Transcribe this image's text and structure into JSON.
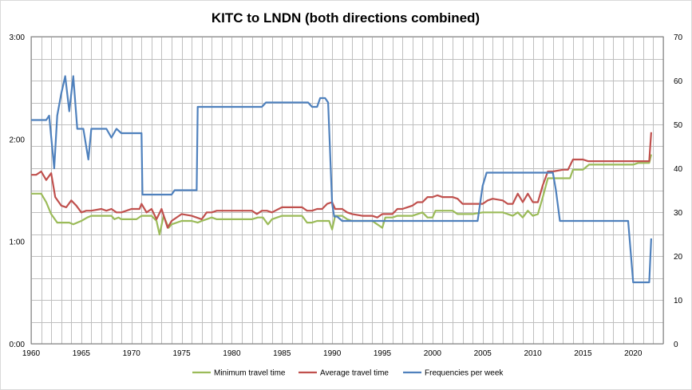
{
  "chart_data": {
    "type": "line",
    "title": "KITC to LNDN (both directions combined)",
    "x_ticks": [
      1960,
      1965,
      1970,
      1975,
      1980,
      1985,
      1990,
      1995,
      2000,
      2005,
      2010,
      2015,
      2020
    ],
    "xlim": [
      1960,
      2023
    ],
    "y_left": {
      "label": "",
      "unit": "minutes",
      "range": [
        0,
        180
      ],
      "ticks": [
        0,
        60,
        120,
        180
      ],
      "tick_labels": [
        "0:00",
        "1:00",
        "2:00",
        "3:00"
      ]
    },
    "y_right": {
      "label": "",
      "range": [
        0,
        70
      ],
      "ticks": [
        0,
        10,
        20,
        30,
        40,
        50,
        60,
        70
      ],
      "tick_labels": [
        "0",
        "10",
        "20",
        "30",
        "40",
        "50",
        "60",
        "70"
      ]
    },
    "series": [
      {
        "name": "Minimum travel time",
        "axis": "left",
        "color": "#9bbb59",
        "points": [
          [
            1960,
            88
          ],
          [
            1961,
            88
          ],
          [
            1961.5,
            83
          ],
          [
            1962,
            76
          ],
          [
            1962.6,
            71
          ],
          [
            1963,
            71
          ],
          [
            1963.8,
            71
          ],
          [
            1964.2,
            70
          ],
          [
            1964.6,
            71
          ],
          [
            1965,
            72
          ],
          [
            1965.6,
            74
          ],
          [
            1966,
            75
          ],
          [
            1967,
            75
          ],
          [
            1968,
            75
          ],
          [
            1968.3,
            73
          ],
          [
            1968.7,
            74
          ],
          [
            1969,
            73
          ],
          [
            1970,
            73
          ],
          [
            1970.5,
            73
          ],
          [
            1971,
            75
          ],
          [
            1971.6,
            75
          ],
          [
            1972,
            75
          ],
          [
            1972.5,
            72
          ],
          [
            1972.8,
            64
          ],
          [
            1973.2,
            75
          ],
          [
            1973.7,
            68
          ],
          [
            1974,
            70
          ],
          [
            1975,
            72
          ],
          [
            1976,
            72
          ],
          [
            1976.6,
            71
          ],
          [
            1977,
            72
          ],
          [
            1978,
            74
          ],
          [
            1978.5,
            73
          ],
          [
            1979,
            73
          ],
          [
            1980,
            73
          ],
          [
            1981,
            73
          ],
          [
            1982,
            73
          ],
          [
            1982.6,
            74
          ],
          [
            1983.1,
            74
          ],
          [
            1983.6,
            70
          ],
          [
            1984,
            73
          ],
          [
            1985,
            75
          ],
          [
            1986,
            75
          ],
          [
            1987,
            75
          ],
          [
            1987.5,
            71
          ],
          [
            1988,
            71
          ],
          [
            1988.5,
            72
          ],
          [
            1989,
            72
          ],
          [
            1989.7,
            72
          ],
          [
            1990,
            67
          ],
          [
            1990.3,
            75
          ],
          [
            1991,
            75
          ],
          [
            1991.5,
            73
          ],
          [
            1992,
            72
          ],
          [
            1993,
            72
          ],
          [
            1994,
            72
          ],
          [
            1994.5,
            70
          ],
          [
            1995,
            68
          ],
          [
            1995.3,
            74
          ],
          [
            1996,
            74
          ],
          [
            1996.5,
            75
          ],
          [
            1997,
            75
          ],
          [
            1998,
            75
          ],
          [
            1998.5,
            76
          ],
          [
            1999,
            77
          ],
          [
            1999.5,
            74
          ],
          [
            2000,
            74
          ],
          [
            2000.3,
            78
          ],
          [
            2001,
            78
          ],
          [
            2002,
            78
          ],
          [
            2002.5,
            76
          ],
          [
            2003,
            76
          ],
          [
            2004,
            76
          ],
          [
            2005,
            77
          ],
          [
            2006,
            77
          ],
          [
            2007,
            77
          ],
          [
            2008,
            75
          ],
          [
            2008.5,
            77
          ],
          [
            2009,
            74
          ],
          [
            2009.5,
            78
          ],
          [
            2010,
            75
          ],
          [
            2010.5,
            76
          ],
          [
            2011,
            86
          ],
          [
            2011.5,
            97
          ],
          [
            2012,
            97
          ],
          [
            2013,
            97
          ],
          [
            2013.7,
            97
          ],
          [
            2014,
            102
          ],
          [
            2015,
            102
          ],
          [
            2015.6,
            105
          ],
          [
            2016,
            105
          ],
          [
            2017,
            105
          ],
          [
            2018,
            105
          ],
          [
            2019,
            105
          ],
          [
            2020,
            105
          ],
          [
            2020.5,
            106
          ],
          [
            2021,
            106
          ],
          [
            2021.6,
            106
          ],
          [
            2021.8,
            111
          ]
        ]
      },
      {
        "name": "Average travel time",
        "axis": "left",
        "color": "#c0504d",
        "points": [
          [
            1960,
            99
          ],
          [
            1960.5,
            99
          ],
          [
            1961,
            101
          ],
          [
            1961.5,
            96
          ],
          [
            1962,
            100
          ],
          [
            1962.4,
            86
          ],
          [
            1963,
            81
          ],
          [
            1963.5,
            80
          ],
          [
            1964,
            84
          ],
          [
            1964.5,
            81
          ],
          [
            1965,
            77
          ],
          [
            1965.5,
            78
          ],
          [
            1966,
            78
          ],
          [
            1967,
            79
          ],
          [
            1967.5,
            78
          ],
          [
            1968,
            79
          ],
          [
            1968.5,
            77
          ],
          [
            1969,
            77
          ],
          [
            1969.5,
            78
          ],
          [
            1970,
            79
          ],
          [
            1970.8,
            79
          ],
          [
            1971,
            82
          ],
          [
            1971.5,
            77
          ],
          [
            1972,
            79
          ],
          [
            1972.5,
            73
          ],
          [
            1973,
            79
          ],
          [
            1973.6,
            68
          ],
          [
            1974,
            72
          ],
          [
            1975,
            76
          ],
          [
            1976,
            75
          ],
          [
            1977,
            73
          ],
          [
            1977.5,
            77
          ],
          [
            1978,
            77
          ],
          [
            1978.5,
            78
          ],
          [
            1979,
            78
          ],
          [
            1980,
            78
          ],
          [
            1981,
            78
          ],
          [
            1982,
            78
          ],
          [
            1982.5,
            76
          ],
          [
            1983,
            78
          ],
          [
            1983.5,
            78
          ],
          [
            1984,
            77
          ],
          [
            1985,
            80
          ],
          [
            1986,
            80
          ],
          [
            1987,
            80
          ],
          [
            1987.5,
            78
          ],
          [
            1988,
            78
          ],
          [
            1988.5,
            79
          ],
          [
            1989,
            79
          ],
          [
            1989.5,
            82
          ],
          [
            1990,
            83
          ],
          [
            1990.3,
            79
          ],
          [
            1991,
            79
          ],
          [
            1991.5,
            77
          ],
          [
            1992,
            76
          ],
          [
            1993,
            75
          ],
          [
            1994,
            75
          ],
          [
            1994.5,
            74
          ],
          [
            1995,
            76
          ],
          [
            1995.5,
            76
          ],
          [
            1996,
            76
          ],
          [
            1996.5,
            79
          ],
          [
            1997,
            79
          ],
          [
            1997.5,
            80
          ],
          [
            1998,
            81
          ],
          [
            1998.5,
            83
          ],
          [
            1999,
            83
          ],
          [
            1999.5,
            86
          ],
          [
            2000,
            86
          ],
          [
            2000.5,
            87
          ],
          [
            2001,
            86
          ],
          [
            2002,
            86
          ],
          [
            2002.5,
            85
          ],
          [
            2003,
            82
          ],
          [
            2004,
            82
          ],
          [
            2005,
            82
          ],
          [
            2005.5,
            84
          ],
          [
            2006,
            85
          ],
          [
            2007,
            84
          ],
          [
            2007.5,
            82
          ],
          [
            2008,
            82
          ],
          [
            2008.5,
            88
          ],
          [
            2009,
            83
          ],
          [
            2009.5,
            88
          ],
          [
            2010,
            83
          ],
          [
            2010.5,
            83
          ],
          [
            2011,
            93
          ],
          [
            2011.5,
            101
          ],
          [
            2012,
            101
          ],
          [
            2013,
            102
          ],
          [
            2013.5,
            102
          ],
          [
            2014,
            108
          ],
          [
            2015,
            108
          ],
          [
            2015.5,
            107
          ],
          [
            2016,
            107
          ],
          [
            2017,
            107
          ],
          [
            2018,
            107
          ],
          [
            2019,
            107
          ],
          [
            2020,
            107
          ],
          [
            2021,
            107
          ],
          [
            2021.6,
            107
          ],
          [
            2021.8,
            124
          ]
        ]
      },
      {
        "name": "Frequencies per week",
        "axis": "right",
        "color": "#4f81bd",
        "points": [
          [
            1960,
            51
          ],
          [
            1961.5,
            51
          ],
          [
            1961.8,
            52
          ],
          [
            1962.3,
            40
          ],
          [
            1962.6,
            52
          ],
          [
            1963,
            57
          ],
          [
            1963.4,
            61
          ],
          [
            1963.8,
            53
          ],
          [
            1964.2,
            61
          ],
          [
            1964.6,
            49
          ],
          [
            1965.2,
            49
          ],
          [
            1965.7,
            42
          ],
          [
            1966,
            49
          ],
          [
            1967,
            49
          ],
          [
            1967.5,
            49
          ],
          [
            1968,
            47
          ],
          [
            1968.5,
            49
          ],
          [
            1969,
            48
          ],
          [
            1970,
            48
          ],
          [
            1970.5,
            48
          ],
          [
            1971,
            48
          ],
          [
            1971.1,
            34
          ],
          [
            1972,
            34
          ],
          [
            1973,
            34
          ],
          [
            1974,
            34
          ],
          [
            1974.3,
            35
          ],
          [
            1975,
            35
          ],
          [
            1976,
            35
          ],
          [
            1976.5,
            35
          ],
          [
            1976.6,
            54
          ],
          [
            1978,
            54
          ],
          [
            1980,
            54
          ],
          [
            1982,
            54
          ],
          [
            1983,
            54
          ],
          [
            1983.4,
            55
          ],
          [
            1985,
            55
          ],
          [
            1987,
            55
          ],
          [
            1987.6,
            55
          ],
          [
            1988,
            54
          ],
          [
            1988.5,
            54
          ],
          [
            1988.8,
            56
          ],
          [
            1989.3,
            56
          ],
          [
            1989.6,
            55
          ],
          [
            1990,
            32
          ],
          [
            1990.2,
            29
          ],
          [
            1990.5,
            29
          ],
          [
            1991,
            28
          ],
          [
            1993,
            28
          ],
          [
            1995,
            28
          ],
          [
            2000,
            28
          ],
          [
            2003,
            28
          ],
          [
            2004.5,
            28
          ],
          [
            2005,
            36
          ],
          [
            2005.4,
            39
          ],
          [
            2008,
            39
          ],
          [
            2010,
            39
          ],
          [
            2012,
            39
          ],
          [
            2012.3,
            35
          ],
          [
            2012.7,
            28
          ],
          [
            2013,
            28
          ],
          [
            2015,
            28
          ],
          [
            2018,
            28
          ],
          [
            2019.5,
            28
          ],
          [
            2020,
            14
          ],
          [
            2020.5,
            14
          ],
          [
            2021,
            14
          ],
          [
            2021.6,
            14
          ],
          [
            2021.8,
            24
          ]
        ]
      }
    ],
    "legend": {
      "placement": "bottom"
    }
  }
}
